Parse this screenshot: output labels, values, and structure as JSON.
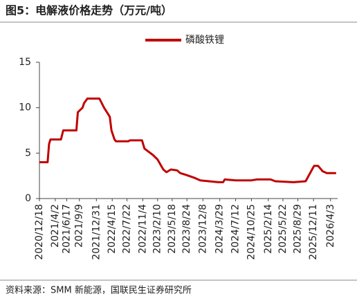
{
  "chart_data": {
    "type": "line",
    "title": "图5：电解液价格走势（万元/吨）",
    "source": "资料来源：SMM 新能源，国联民生证券研究所",
    "x": [
      "2020/12/18",
      "2021/2/10",
      "2021/2/20",
      "2021/3/1",
      "2021/5/10",
      "2021/5/25",
      "2021/8/20",
      "2021/8/30",
      "2021/9/30",
      "2021/10/10",
      "2021/11/1",
      "2022/1/20",
      "2022/2/20",
      "2022/3/30",
      "2022/4/10",
      "2022/4/30",
      "2022/5/10",
      "2022/7/30",
      "2022/8/10",
      "2022/10/30",
      "2022/11/15",
      "2023/1/10",
      "2023/2/10",
      "2023/3/20",
      "2023/4/10",
      "2023/5/10",
      "2023/6/20",
      "2023/7/10",
      "2023/8/20",
      "2023/10/10",
      "2023/11/20",
      "2024/3/20",
      "2024/4/20",
      "2024/5/1",
      "2024/7/12",
      "2024/10/25",
      "2024/12/1",
      "2025/3/1",
      "2025/4/1",
      "2025/8/1",
      "2025/10/20",
      "2025/11/15",
      "2025/12/15",
      "2026/1/10",
      "2026/2/10",
      "2026/3/10",
      "2026/5/10"
    ],
    "series": [
      {
        "name": "磷酸铁锂",
        "color": "#c00000",
        "values": [
          4.0,
          4.0,
          6.0,
          6.5,
          6.5,
          7.5,
          7.5,
          9.5,
          10.0,
          10.5,
          11.0,
          11.0,
          10.0,
          9.0,
          7.5,
          6.5,
          6.3,
          6.3,
          6.4,
          6.4,
          5.5,
          4.8,
          4.3,
          3.2,
          2.9,
          3.2,
          3.1,
          2.8,
          2.6,
          2.3,
          2.0,
          1.8,
          1.8,
          2.1,
          2.0,
          2.0,
          2.1,
          2.1,
          1.9,
          1.8,
          1.9,
          2.7,
          3.6,
          3.6,
          3.0,
          2.8,
          2.8
        ]
      }
    ],
    "xlim": [
      "2020/12/18",
      "2026/5/20"
    ],
    "xticks": [
      "2020/12/18",
      "2021/4/2",
      "2021/6/17",
      "2021/9/9",
      "2021/12/31",
      "2022/4/15",
      "2022/7/22",
      "2022/11/4",
      "2023/2/10",
      "2023/5/18",
      "2023/8/24",
      "2023/12/8",
      "2024/3/29",
      "2024/7/12",
      "2024/10/25",
      "2025/2/14",
      "2025/5/22",
      "2025/8/29",
      "2025/12/11",
      "2026/4/3"
    ],
    "ylim": [
      0,
      15
    ],
    "yticks": [
      0,
      5,
      10,
      15
    ],
    "grid": false,
    "legend": "top"
  }
}
